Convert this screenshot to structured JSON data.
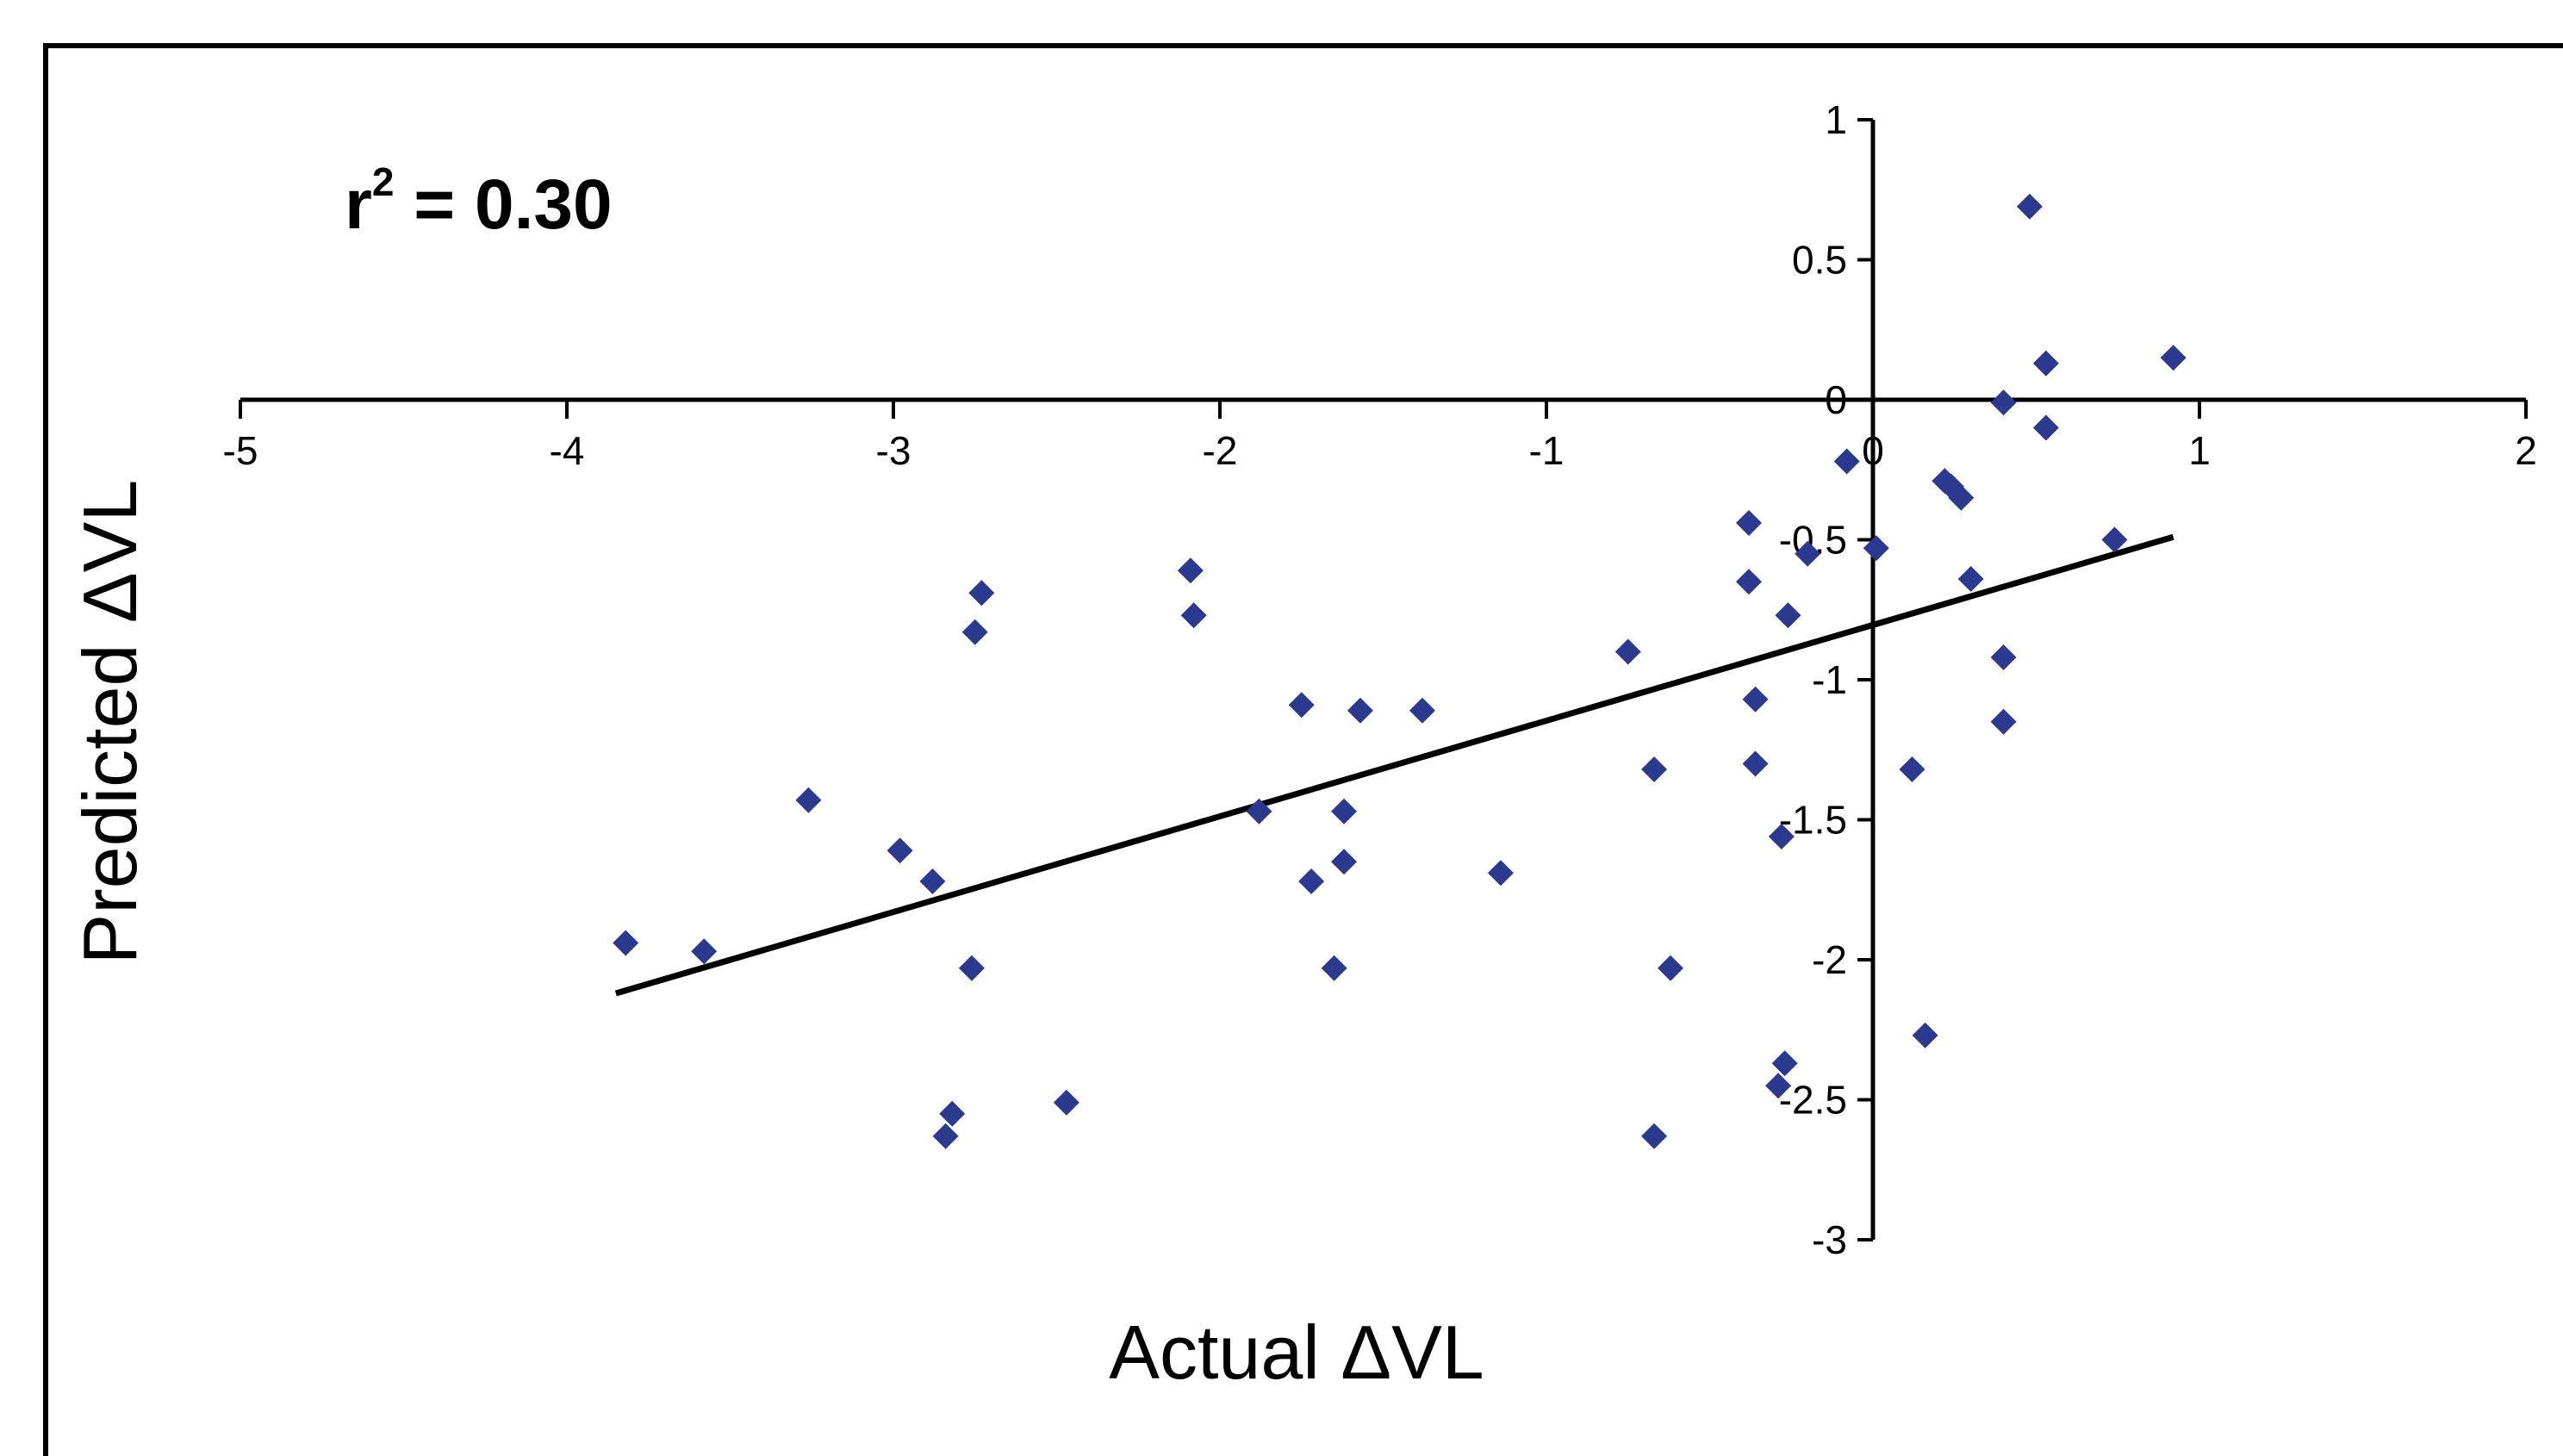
{
  "chart_data": {
    "type": "scatter",
    "title": "",
    "xlabel": "Actual ΔVL",
    "ylabel": "Predicted ΔVL",
    "xlim": [
      -5,
      2
    ],
    "ylim": [
      -3,
      1
    ],
    "xticks": [
      -5,
      -4,
      -3,
      -2,
      -1,
      0,
      1,
      2
    ],
    "yticks": [
      1,
      0.5,
      0,
      -0.5,
      -1,
      -1.5,
      -2,
      -2.5,
      -3
    ],
    "xtick_labels": [
      "-5",
      "-4",
      "-3",
      "-2",
      "-1",
      "0",
      "1",
      "2"
    ],
    "ytick_labels": [
      "1",
      "0.5",
      "0",
      "-0.5",
      "-1",
      "-1.5",
      "-2",
      "-2.5",
      "-3"
    ],
    "annotation": {
      "r": "r",
      "sup": "2",
      "rest": " = 0.30"
    },
    "grid": false,
    "legend": "none",
    "marker_color": "#2b3a8f",
    "trendline": {
      "x": [
        -3.85,
        0.92
      ],
      "y": [
        -2.12,
        -0.49
      ]
    },
    "points": [
      {
        "x": -3.82,
        "y": -1.94
      },
      {
        "x": -3.58,
        "y": -1.97
      },
      {
        "x": -3.26,
        "y": -1.43
      },
      {
        "x": -2.98,
        "y": -1.61
      },
      {
        "x": -2.88,
        "y": -1.72
      },
      {
        "x": -2.76,
        "y": -2.03
      },
      {
        "x": -2.75,
        "y": -0.83
      },
      {
        "x": -2.73,
        "y": -0.69
      },
      {
        "x": -2.82,
        "y": -2.55
      },
      {
        "x": -2.84,
        "y": -2.63
      },
      {
        "x": -2.47,
        "y": -2.51
      },
      {
        "x": -2.09,
        "y": -0.61
      },
      {
        "x": -2.08,
        "y": -0.77
      },
      {
        "x": -1.88,
        "y": -1.47
      },
      {
        "x": -1.75,
        "y": -1.09
      },
      {
        "x": -1.72,
        "y": -1.72
      },
      {
        "x": -1.65,
        "y": -2.03
      },
      {
        "x": -1.62,
        "y": -1.47
      },
      {
        "x": -1.62,
        "y": -1.65
      },
      {
        "x": -1.57,
        "y": -1.11
      },
      {
        "x": -1.38,
        "y": -1.11
      },
      {
        "x": -1.14,
        "y": -1.69
      },
      {
        "x": -0.75,
        "y": -0.9
      },
      {
        "x": -0.67,
        "y": -1.32
      },
      {
        "x": -0.67,
        "y": -2.63
      },
      {
        "x": -0.62,
        "y": -2.03
      },
      {
        "x": -0.38,
        "y": -0.44
      },
      {
        "x": -0.38,
        "y": -0.65
      },
      {
        "x": -0.36,
        "y": -1.07
      },
      {
        "x": -0.36,
        "y": -1.3
      },
      {
        "x": -0.26,
        "y": -0.77
      },
      {
        "x": -0.2,
        "y": -0.55
      },
      {
        "x": -0.28,
        "y": -1.56
      },
      {
        "x": -0.27,
        "y": -2.37
      },
      {
        "x": -0.29,
        "y": -2.45
      },
      {
        "x": -0.08,
        "y": -0.22
      },
      {
        "x": 0.01,
        "y": -0.53
      },
      {
        "x": 0.12,
        "y": -1.32
      },
      {
        "x": 0.16,
        "y": -2.27
      },
      {
        "x": 0.22,
        "y": -0.29
      },
      {
        "x": 0.24,
        "y": -0.31
      },
      {
        "x": 0.27,
        "y": -0.35
      },
      {
        "x": 0.3,
        "y": -0.64
      },
      {
        "x": 0.4,
        "y": -0.01
      },
      {
        "x": 0.4,
        "y": -0.92
      },
      {
        "x": 0.4,
        "y": -1.15
      },
      {
        "x": 0.48,
        "y": 0.69
      },
      {
        "x": 0.53,
        "y": 0.13
      },
      {
        "x": 0.53,
        "y": -0.1
      },
      {
        "x": 0.74,
        "y": -0.5
      },
      {
        "x": 0.92,
        "y": 0.15
      }
    ]
  }
}
